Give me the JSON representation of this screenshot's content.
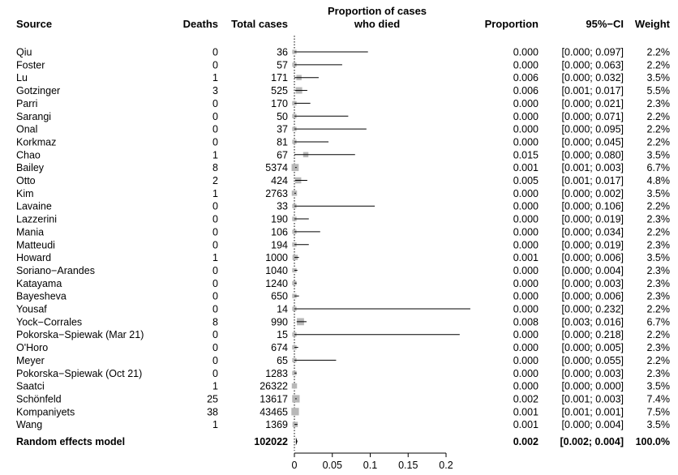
{
  "headers": {
    "source": "Source",
    "deaths": "Deaths",
    "total": "Total cases",
    "plot_line1": "Proportion of cases",
    "plot_line2": "who died",
    "proportion": "Proportion",
    "ci": "95%−CI",
    "weight": "Weight"
  },
  "studies": [
    {
      "source": "Qiu",
      "deaths": "0",
      "total": "36",
      "prop": "0.000",
      "ci": "[0.000; 0.097]",
      "weight": "2.2%"
    },
    {
      "source": "Foster",
      "deaths": "0",
      "total": "57",
      "prop": "0.000",
      "ci": "[0.000; 0.063]",
      "weight": "2.2%"
    },
    {
      "source": "Lu",
      "deaths": "1",
      "total": "171",
      "prop": "0.006",
      "ci": "[0.000; 0.032]",
      "weight": "3.5%"
    },
    {
      "source": "Gotzinger",
      "deaths": "3",
      "total": "525",
      "prop": "0.006",
      "ci": "[0.001; 0.017]",
      "weight": "5.5%"
    },
    {
      "source": "Parri",
      "deaths": "0",
      "total": "170",
      "prop": "0.000",
      "ci": "[0.000; 0.021]",
      "weight": "2.3%"
    },
    {
      "source": "Sarangi",
      "deaths": "0",
      "total": "50",
      "prop": "0.000",
      "ci": "[0.000; 0.071]",
      "weight": "2.2%"
    },
    {
      "source": "Onal",
      "deaths": "0",
      "total": "37",
      "prop": "0.000",
      "ci": "[0.000; 0.095]",
      "weight": "2.2%"
    },
    {
      "source": "Korkmaz",
      "deaths": "0",
      "total": "81",
      "prop": "0.000",
      "ci": "[0.000; 0.045]",
      "weight": "2.2%"
    },
    {
      "source": "Chao",
      "deaths": "1",
      "total": "67",
      "prop": "0.015",
      "ci": "[0.000; 0.080]",
      "weight": "3.5%"
    },
    {
      "source": "Bailey",
      "deaths": "8",
      "total": "5374",
      "prop": "0.001",
      "ci": "[0.001; 0.003]",
      "weight": "6.7%"
    },
    {
      "source": "Otto",
      "deaths": "2",
      "total": "424",
      "prop": "0.005",
      "ci": "[0.001; 0.017]",
      "weight": "4.8%"
    },
    {
      "source": "Kim",
      "deaths": "1",
      "total": "2763",
      "prop": "0.000",
      "ci": "[0.000; 0.002]",
      "weight": "3.5%"
    },
    {
      "source": "Lavaine",
      "deaths": "0",
      "total": "33",
      "prop": "0.000",
      "ci": "[0.000; 0.106]",
      "weight": "2.2%"
    },
    {
      "source": "Lazzerini",
      "deaths": "0",
      "total": "190",
      "prop": "0.000",
      "ci": "[0.000; 0.019]",
      "weight": "2.3%"
    },
    {
      "source": "Mania",
      "deaths": "0",
      "total": "106",
      "prop": "0.000",
      "ci": "[0.000; 0.034]",
      "weight": "2.2%"
    },
    {
      "source": "Matteudi",
      "deaths": "0",
      "total": "194",
      "prop": "0.000",
      "ci": "[0.000; 0.019]",
      "weight": "2.3%"
    },
    {
      "source": "Howard",
      "deaths": "1",
      "total": "1000",
      "prop": "0.001",
      "ci": "[0.000; 0.006]",
      "weight": "3.5%"
    },
    {
      "source": "Soriano−Arandes",
      "deaths": "0",
      "total": "1040",
      "prop": "0.000",
      "ci": "[0.000; 0.004]",
      "weight": "2.3%"
    },
    {
      "source": "Katayama",
      "deaths": "0",
      "total": "1240",
      "prop": "0.000",
      "ci": "[0.000; 0.003]",
      "weight": "2.3%"
    },
    {
      "source": "Bayesheva",
      "deaths": "0",
      "total": "650",
      "prop": "0.000",
      "ci": "[0.000; 0.006]",
      "weight": "2.3%"
    },
    {
      "source": "Yousaf",
      "deaths": "0",
      "total": "14",
      "prop": "0.000",
      "ci": "[0.000; 0.232]",
      "weight": "2.2%"
    },
    {
      "source": "Yock−Corrales",
      "deaths": "8",
      "total": "990",
      "prop": "0.008",
      "ci": "[0.003; 0.016]",
      "weight": "6.7%"
    },
    {
      "source": "Pokorska−Spiewak (Mar 21)",
      "deaths": "0",
      "total": "15",
      "prop": "0.000",
      "ci": "[0.000; 0.218]",
      "weight": "2.2%"
    },
    {
      "source": "O'Horo",
      "deaths": "0",
      "total": "674",
      "prop": "0.000",
      "ci": "[0.000; 0.005]",
      "weight": "2.3%"
    },
    {
      "source": "Meyer",
      "deaths": "0",
      "total": "65",
      "prop": "0.000",
      "ci": "[0.000; 0.055]",
      "weight": "2.2%"
    },
    {
      "source": "Pokorska−Spiewak (Oct 21)",
      "deaths": "0",
      "total": "1283",
      "prop": "0.000",
      "ci": "[0.000; 0.003]",
      "weight": "2.3%"
    },
    {
      "source": "Saatci",
      "deaths": "1",
      "total": "26322",
      "prop": "0.000",
      "ci": "[0.000; 0.000]",
      "weight": "3.5%"
    },
    {
      "source": "Schönfeld",
      "deaths": "25",
      "total": "13617",
      "prop": "0.002",
      "ci": "[0.001; 0.003]",
      "weight": "7.4%"
    },
    {
      "source": "Kompaniyets",
      "deaths": "38",
      "total": "43465",
      "prop": "0.001",
      "ci": "[0.001; 0.001]",
      "weight": "7.5%"
    },
    {
      "source": "Wang",
      "deaths": "1",
      "total": "1369",
      "prop": "0.001",
      "ci": "[0.000; 0.004]",
      "weight": "3.5%"
    }
  ],
  "summary": {
    "source": "Random effects model",
    "total": "102022",
    "prop": "0.002",
    "ci": "[0.002; 0.004]",
    "weight": "100.0%"
  },
  "chart_data": {
    "type": "forest",
    "xlim": [
      0,
      0.2
    ],
    "x_ticks": [
      0,
      0.05,
      0.1,
      0.15,
      0.2
    ],
    "x_tick_labels": [
      "0",
      "0.05",
      "0.1",
      "0.15",
      "0.2"
    ],
    "reference_line": 0,
    "pooled": {
      "estimate": 0.002,
      "lower": 0.002,
      "upper": 0.004
    },
    "points": [
      {
        "est": 0.0,
        "lo": 0.0,
        "hi": 0.097,
        "w": 2.2
      },
      {
        "est": 0.0,
        "lo": 0.0,
        "hi": 0.063,
        "w": 2.2
      },
      {
        "est": 0.006,
        "lo": 0.0,
        "hi": 0.032,
        "w": 3.5
      },
      {
        "est": 0.006,
        "lo": 0.001,
        "hi": 0.017,
        "w": 5.5
      },
      {
        "est": 0.0,
        "lo": 0.0,
        "hi": 0.021,
        "w": 2.3
      },
      {
        "est": 0.0,
        "lo": 0.0,
        "hi": 0.071,
        "w": 2.2
      },
      {
        "est": 0.0,
        "lo": 0.0,
        "hi": 0.095,
        "w": 2.2
      },
      {
        "est": 0.0,
        "lo": 0.0,
        "hi": 0.045,
        "w": 2.2
      },
      {
        "est": 0.015,
        "lo": 0.0,
        "hi": 0.08,
        "w": 3.5
      },
      {
        "est": 0.001,
        "lo": 0.001,
        "hi": 0.003,
        "w": 6.7
      },
      {
        "est": 0.005,
        "lo": 0.001,
        "hi": 0.017,
        "w": 4.8
      },
      {
        "est": 0.0,
        "lo": 0.0,
        "hi": 0.002,
        "w": 3.5
      },
      {
        "est": 0.0,
        "lo": 0.0,
        "hi": 0.106,
        "w": 2.2
      },
      {
        "est": 0.0,
        "lo": 0.0,
        "hi": 0.019,
        "w": 2.3
      },
      {
        "est": 0.0,
        "lo": 0.0,
        "hi": 0.034,
        "w": 2.2
      },
      {
        "est": 0.0,
        "lo": 0.0,
        "hi": 0.019,
        "w": 2.3
      },
      {
        "est": 0.001,
        "lo": 0.0,
        "hi": 0.006,
        "w": 3.5
      },
      {
        "est": 0.0,
        "lo": 0.0,
        "hi": 0.004,
        "w": 2.3
      },
      {
        "est": 0.0,
        "lo": 0.0,
        "hi": 0.003,
        "w": 2.3
      },
      {
        "est": 0.0,
        "lo": 0.0,
        "hi": 0.006,
        "w": 2.3
      },
      {
        "est": 0.0,
        "lo": 0.0,
        "hi": 0.232,
        "w": 2.2
      },
      {
        "est": 0.008,
        "lo": 0.003,
        "hi": 0.016,
        "w": 6.7
      },
      {
        "est": 0.0,
        "lo": 0.0,
        "hi": 0.218,
        "w": 2.2
      },
      {
        "est": 0.0,
        "lo": 0.0,
        "hi": 0.005,
        "w": 2.3
      },
      {
        "est": 0.0,
        "lo": 0.0,
        "hi": 0.055,
        "w": 2.2
      },
      {
        "est": 0.0,
        "lo": 0.0,
        "hi": 0.003,
        "w": 2.3
      },
      {
        "est": 0.0,
        "lo": 0.0,
        "hi": 0.0,
        "w": 3.5
      },
      {
        "est": 0.002,
        "lo": 0.001,
        "hi": 0.003,
        "w": 7.4
      },
      {
        "est": 0.001,
        "lo": 0.001,
        "hi": 0.001,
        "w": 7.5
      },
      {
        "est": 0.001,
        "lo": 0.0,
        "hi": 0.004,
        "w": 3.5
      }
    ],
    "colors": {
      "box": "#b8b8b8",
      "line": "#000000"
    }
  }
}
